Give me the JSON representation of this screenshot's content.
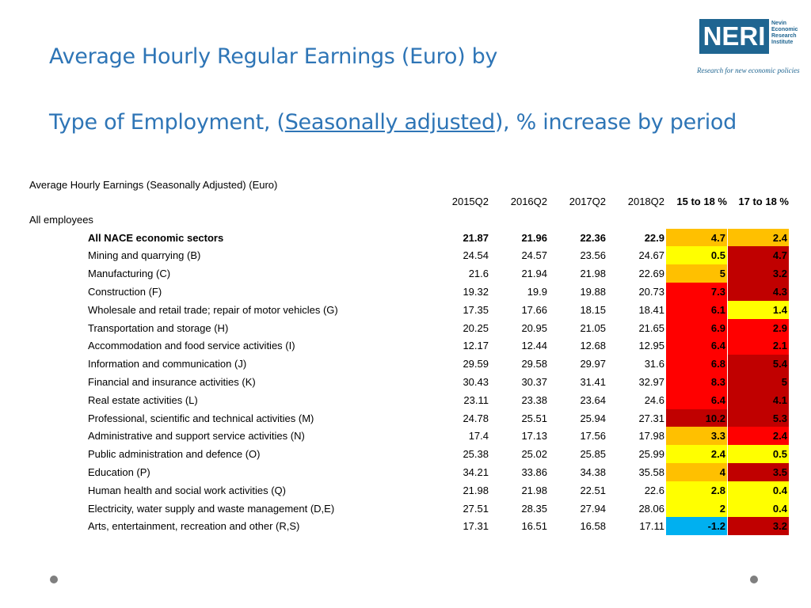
{
  "title": {
    "line1": "Average Hourly Regular Earnings  (Euro) by",
    "line2_pre": "Type of Employment, (",
    "line2_link": "Seasonally adjusted",
    "line2_post": "), % increase by period"
  },
  "logo": {
    "text": "NERI",
    "sub1": "Nevin",
    "sub2": "Economic",
    "sub3": "Research",
    "sub4": "Institute",
    "tagline": "Research for new economic policies",
    "color": "#1f6591"
  },
  "table": {
    "caption": "Average Hourly Earnings (Seasonally Adjusted) (Euro)",
    "headers": [
      "2015Q2",
      "2016Q2",
      "2017Q2",
      "2018Q2",
      "15 to 18 %",
      "17 to 18 %"
    ],
    "group_label": "All employees",
    "rows": [
      {
        "label": "All NACE economic sectors",
        "values": [
          "21.87",
          "21.96",
          "22.36",
          "22.9",
          "4.7",
          "2.4"
        ],
        "colors": [
          "#ffc000",
          "#ffc000"
        ],
        "bold": true
      },
      {
        "label": "Mining and quarrying (B)",
        "values": [
          "24.54",
          "24.57",
          "23.56",
          "24.67",
          "0.5",
          "4.7"
        ],
        "colors": [
          "#ffff00",
          "#c00000"
        ]
      },
      {
        "label": "Manufacturing (C)",
        "values": [
          "21.6",
          "21.94",
          "21.98",
          "22.69",
          "5",
          "3.2"
        ],
        "colors": [
          "#ffc000",
          "#c00000"
        ]
      },
      {
        "label": "Construction (F)",
        "values": [
          "19.32",
          "19.9",
          "19.88",
          "20.73",
          "7.3",
          "4.3"
        ],
        "colors": [
          "#ff0000",
          "#c00000"
        ]
      },
      {
        "label": "Wholesale and retail trade; repair of motor vehicles (G)",
        "values": [
          "17.35",
          "17.66",
          "18.15",
          "18.41",
          "6.1",
          "1.4"
        ],
        "colors": [
          "#ff0000",
          "#ffff00"
        ]
      },
      {
        "label": "Transportation and storage (H)",
        "values": [
          "20.25",
          "20.95",
          "21.05",
          "21.65",
          "6.9",
          "2.9"
        ],
        "colors": [
          "#ff0000",
          "#ff0000"
        ]
      },
      {
        "label": "Accommodation and food service activities (I)",
        "values": [
          "12.17",
          "12.44",
          "12.68",
          "12.95",
          "6.4",
          "2.1"
        ],
        "colors": [
          "#ff0000",
          "#ff0000"
        ]
      },
      {
        "label": "Information and communication (J)",
        "values": [
          "29.59",
          "29.58",
          "29.97",
          "31.6",
          "6.8",
          "5.4"
        ],
        "colors": [
          "#ff0000",
          "#c00000"
        ]
      },
      {
        "label": "Financial and insurance activities (K)",
        "values": [
          "30.43",
          "30.37",
          "31.41",
          "32.97",
          "8.3",
          "5"
        ],
        "colors": [
          "#ff0000",
          "#c00000"
        ]
      },
      {
        "label": "Real estate activities (L)",
        "values": [
          "23.11",
          "23.38",
          "23.64",
          "24.6",
          "6.4",
          "4.1"
        ],
        "colors": [
          "#ff0000",
          "#c00000"
        ]
      },
      {
        "label": "Professional, scientific and technical activities (M)",
        "values": [
          "24.78",
          "25.51",
          "25.94",
          "27.31",
          "10.2",
          "5.3"
        ],
        "colors": [
          "#c00000",
          "#c00000"
        ]
      },
      {
        "label": "Administrative and support service activities (N)",
        "values": [
          "17.4",
          "17.13",
          "17.56",
          "17.98",
          "3.3",
          "2.4"
        ],
        "colors": [
          "#ffc000",
          "#ff0000"
        ]
      },
      {
        "label": "Public administration and defence (O)",
        "values": [
          "25.38",
          "25.02",
          "25.85",
          "25.99",
          "2.4",
          "0.5"
        ],
        "colors": [
          "#ffff00",
          "#ffff00"
        ]
      },
      {
        "label": "Education (P)",
        "values": [
          "34.21",
          "33.86",
          "34.38",
          "35.58",
          "4",
          "3.5"
        ],
        "colors": [
          "#ffc000",
          "#c00000"
        ]
      },
      {
        "label": "Human health and social work activities (Q)",
        "values": [
          "21.98",
          "21.98",
          "22.51",
          "22.6",
          "2.8",
          "0.4"
        ],
        "colors": [
          "#ffff00",
          "#ffff00"
        ]
      },
      {
        "label": "Electricity, water supply and waste management (D,E)",
        "values": [
          "27.51",
          "28.35",
          "27.94",
          "28.06",
          "2",
          "0.4"
        ],
        "colors": [
          "#ffff00",
          "#ffff00"
        ]
      },
      {
        "label": "Arts, entertainment, recreation and other (R,S)",
        "values": [
          "17.31",
          "16.51",
          "16.58",
          "17.11",
          "-1.2",
          "3.2"
        ],
        "colors": [
          "#00b0f0",
          "#c00000"
        ]
      }
    ]
  }
}
